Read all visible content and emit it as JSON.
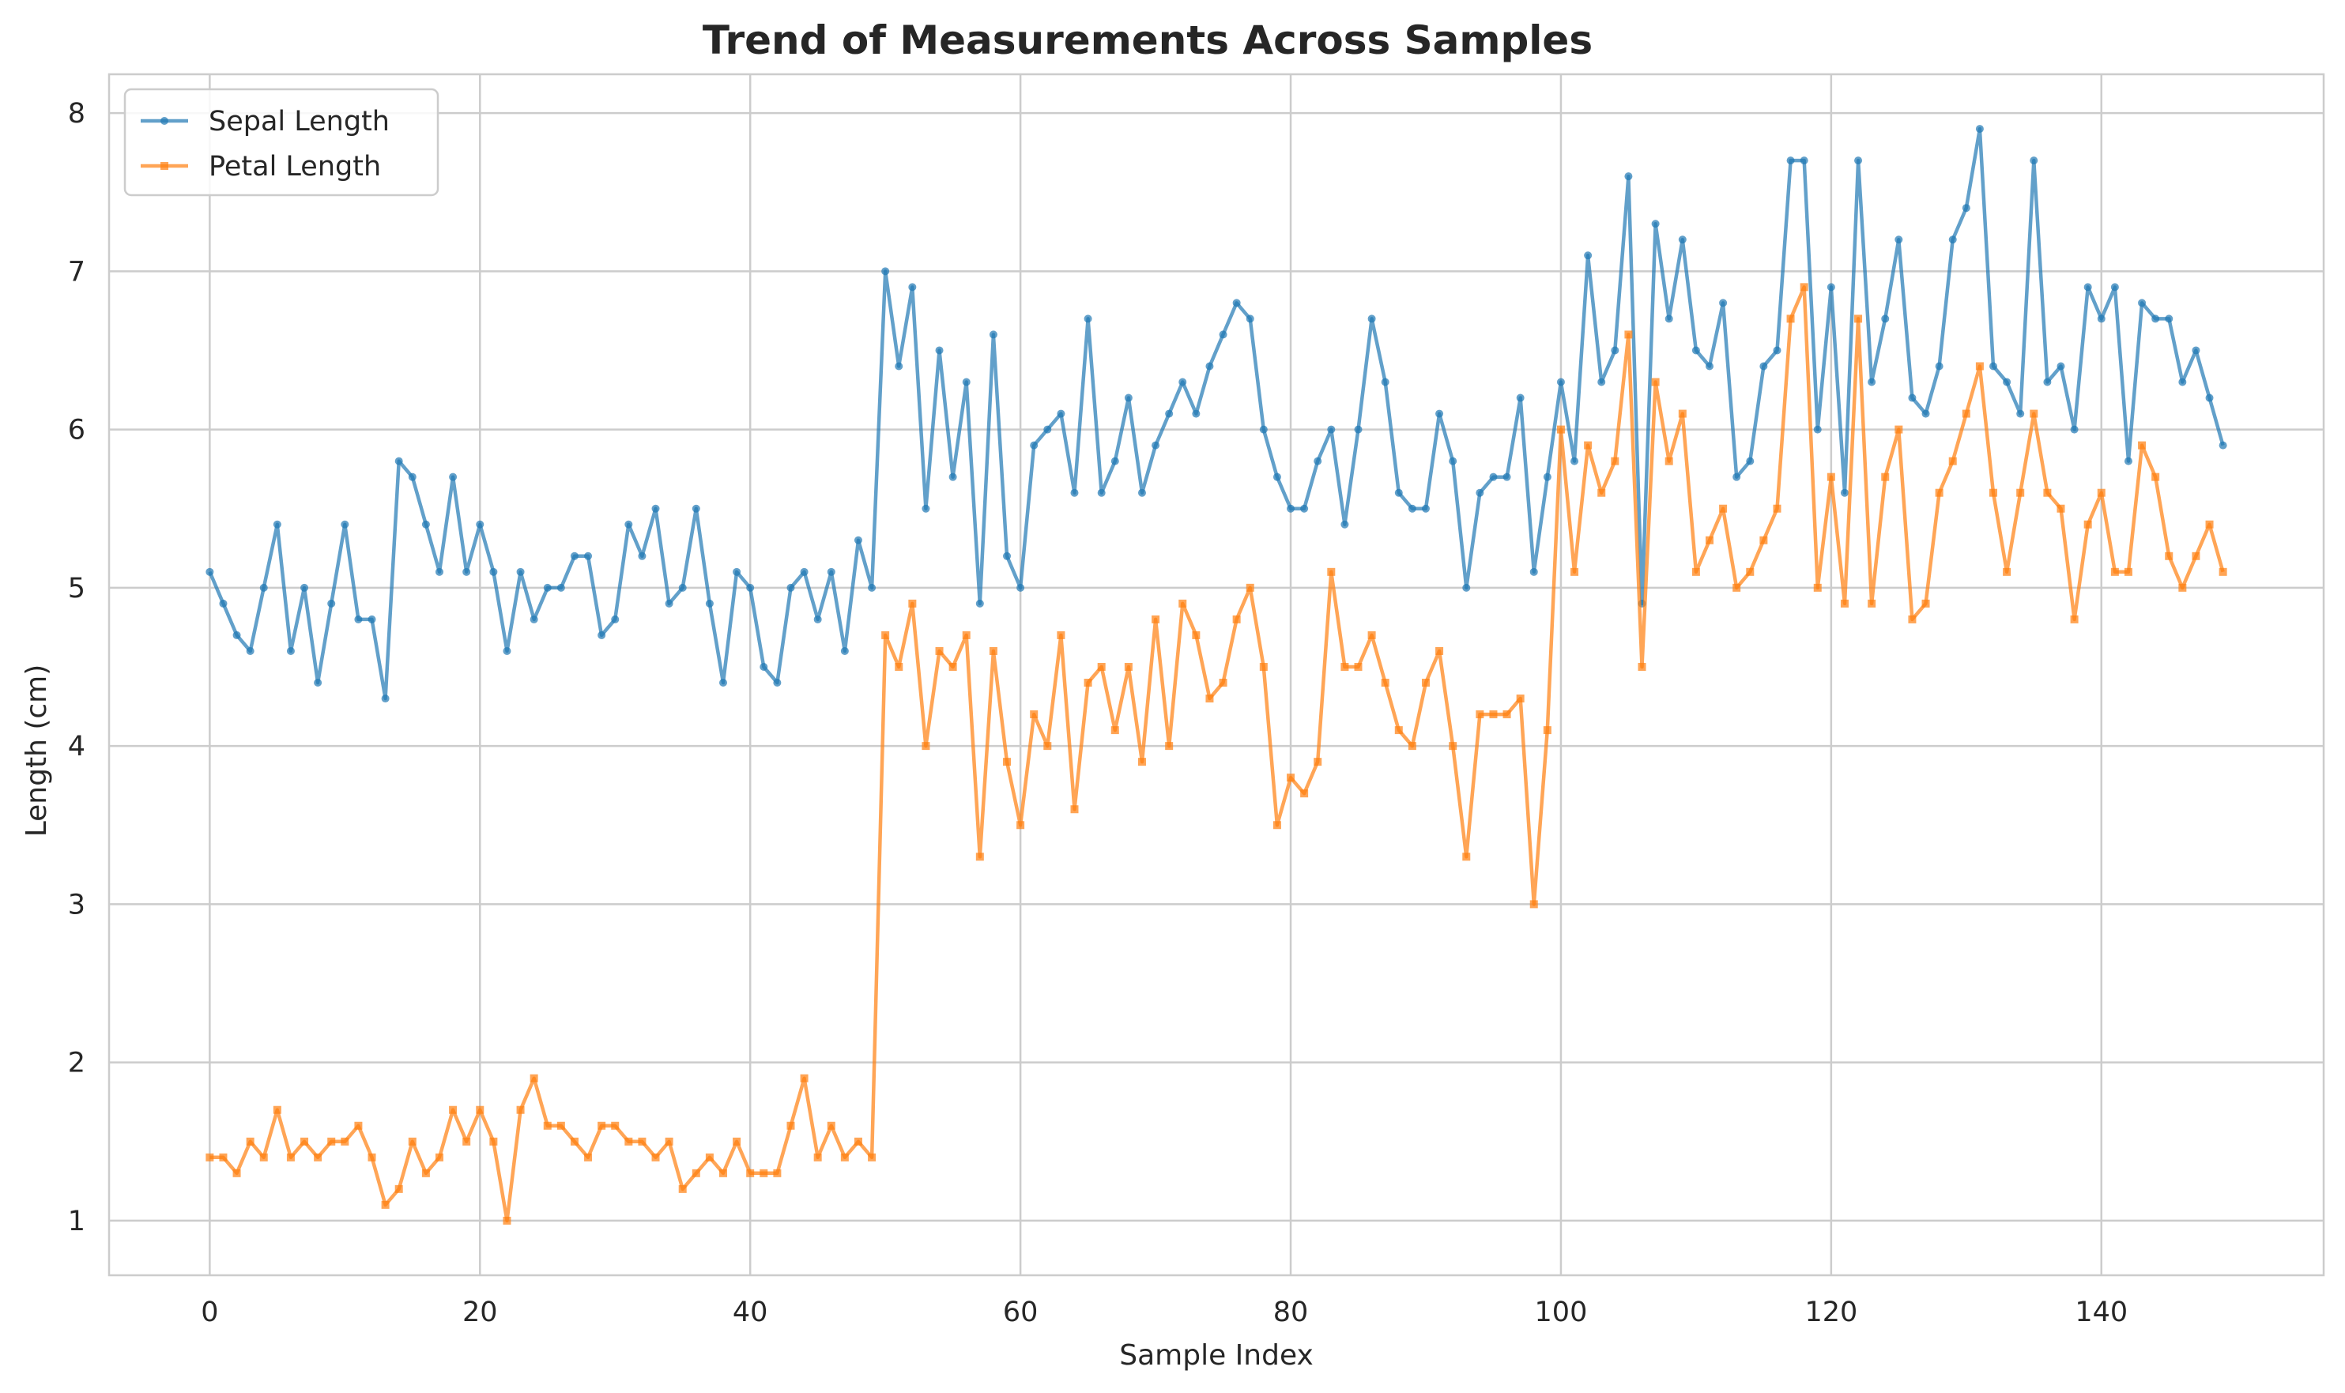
{
  "chart_data": {
    "type": "line",
    "title": "Trend of Measurements Across Samples",
    "xlabel": "Sample Index",
    "ylabel": "Length (cm)",
    "xlim": [
      -7.45,
      156.45
    ],
    "ylim": [
      0.655,
      8.245
    ],
    "xticks": [
      0,
      20,
      40,
      60,
      80,
      100,
      120,
      140
    ],
    "yticks": [
      1,
      2,
      3,
      4,
      5,
      6,
      7,
      8
    ],
    "grid": true,
    "legend_position": "top-left",
    "series": [
      {
        "name": "Sepal Length",
        "color": "#1f77b4",
        "marker": "circle",
        "values": [
          5.1,
          4.9,
          4.7,
          4.6,
          5.0,
          5.4,
          4.6,
          5.0,
          4.4,
          4.9,
          5.4,
          4.8,
          4.8,
          4.3,
          5.8,
          5.7,
          5.4,
          5.1,
          5.7,
          5.1,
          5.4,
          5.1,
          4.6,
          5.1,
          4.8,
          5.0,
          5.0,
          5.2,
          5.2,
          4.7,
          4.8,
          5.4,
          5.2,
          5.5,
          4.9,
          5.0,
          5.5,
          4.9,
          4.4,
          5.1,
          5.0,
          4.5,
          4.4,
          5.0,
          5.1,
          4.8,
          5.1,
          4.6,
          5.3,
          5.0,
          7.0,
          6.4,
          6.9,
          5.5,
          6.5,
          5.7,
          6.3,
          4.9,
          6.6,
          5.2,
          5.0,
          5.9,
          6.0,
          6.1,
          5.6,
          6.7,
          5.6,
          5.8,
          6.2,
          5.6,
          5.9,
          6.1,
          6.3,
          6.1,
          6.4,
          6.6,
          6.8,
          6.7,
          6.0,
          5.7,
          5.5,
          5.5,
          5.8,
          6.0,
          5.4,
          6.0,
          6.7,
          6.3,
          5.6,
          5.5,
          5.5,
          6.1,
          5.8,
          5.0,
          5.6,
          5.7,
          5.7,
          6.2,
          5.1,
          5.7,
          6.3,
          5.8,
          7.1,
          6.3,
          6.5,
          7.6,
          4.9,
          7.3,
          6.7,
          7.2,
          6.5,
          6.4,
          6.8,
          5.7,
          5.8,
          6.4,
          6.5,
          7.7,
          7.7,
          6.0,
          6.9,
          5.6,
          7.7,
          6.3,
          6.7,
          7.2,
          6.2,
          6.1,
          6.4,
          7.2,
          7.4,
          7.9,
          6.4,
          6.3,
          6.1,
          7.7,
          6.3,
          6.4,
          6.0,
          6.9,
          6.7,
          6.9,
          5.8,
          6.8,
          6.7,
          6.7,
          6.3,
          6.5,
          6.2,
          5.9
        ]
      },
      {
        "name": "Petal Length",
        "color": "#ff7f0e",
        "marker": "square",
        "values": [
          1.4,
          1.4,
          1.3,
          1.5,
          1.4,
          1.7,
          1.4,
          1.5,
          1.4,
          1.5,
          1.5,
          1.6,
          1.4,
          1.1,
          1.2,
          1.5,
          1.3,
          1.4,
          1.7,
          1.5,
          1.7,
          1.5,
          1.0,
          1.7,
          1.9,
          1.6,
          1.6,
          1.5,
          1.4,
          1.6,
          1.6,
          1.5,
          1.5,
          1.4,
          1.5,
          1.2,
          1.3,
          1.4,
          1.3,
          1.5,
          1.3,
          1.3,
          1.3,
          1.6,
          1.9,
          1.4,
          1.6,
          1.4,
          1.5,
          1.4,
          4.7,
          4.5,
          4.9,
          4.0,
          4.6,
          4.5,
          4.7,
          3.3,
          4.6,
          3.9,
          3.5,
          4.2,
          4.0,
          4.7,
          3.6,
          4.4,
          4.5,
          4.1,
          4.5,
          3.9,
          4.8,
          4.0,
          4.9,
          4.7,
          4.3,
          4.4,
          4.8,
          5.0,
          4.5,
          3.5,
          3.8,
          3.7,
          3.9,
          5.1,
          4.5,
          4.5,
          4.7,
          4.4,
          4.1,
          4.0,
          4.4,
          4.6,
          4.0,
          3.3,
          4.2,
          4.2,
          4.2,
          4.3,
          3.0,
          4.1,
          6.0,
          5.1,
          5.9,
          5.6,
          5.8,
          6.6,
          4.5,
          6.3,
          5.8,
          6.1,
          5.1,
          5.3,
          5.5,
          5.0,
          5.1,
          5.3,
          5.5,
          6.7,
          6.9,
          5.0,
          5.7,
          4.9,
          6.7,
          4.9,
          5.7,
          6.0,
          4.8,
          4.9,
          5.6,
          5.8,
          6.1,
          6.4,
          5.6,
          5.1,
          5.6,
          6.1,
          5.6,
          5.5,
          4.8,
          5.4,
          5.6,
          5.1,
          5.1,
          5.9,
          5.7,
          5.2,
          5.0,
          5.2,
          5.4,
          5.1
        ]
      }
    ]
  }
}
